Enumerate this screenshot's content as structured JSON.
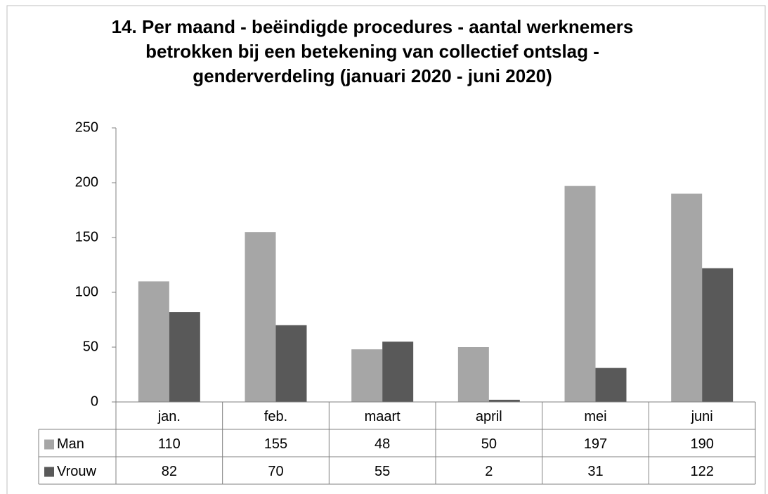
{
  "chart_data": {
    "type": "bar",
    "title": [
      "14. Per maand - beëindigde procedures - aantal werknemers",
      "betrokken bij een betekening van collectief ontslag -",
      "genderverdeling (januari 2020 - juni 2020)"
    ],
    "categories": [
      "jan.",
      "feb.",
      "maart",
      "april",
      "mei",
      "juni"
    ],
    "series": [
      {
        "name": "Man",
        "color": "#a6a6a6",
        "values": [
          110,
          155,
          48,
          50,
          197,
          190
        ]
      },
      {
        "name": "Vrouw",
        "color": "#595959",
        "values": [
          82,
          70,
          55,
          2,
          31,
          122
        ]
      }
    ],
    "ylim": [
      0,
      250
    ],
    "yticks": [
      0,
      50,
      100,
      150,
      200,
      250
    ],
    "grid": false
  }
}
